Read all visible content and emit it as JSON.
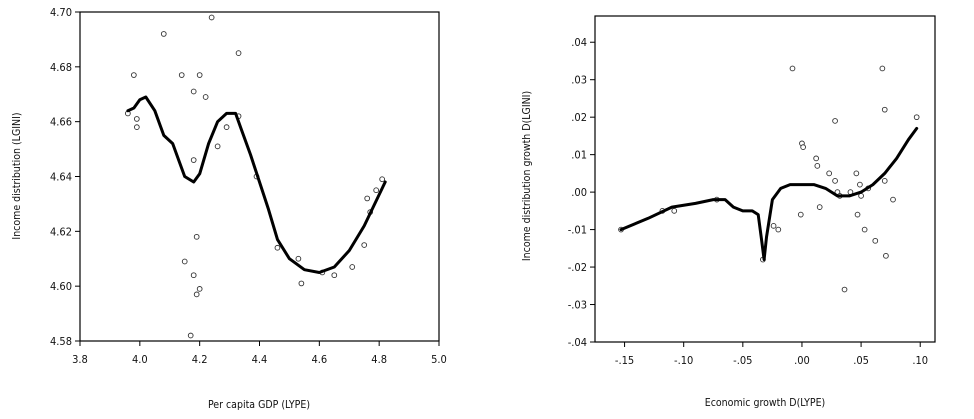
{
  "chart_data": [
    {
      "type": "scatter",
      "xlabel": "Per capita GDP (LYPE)",
      "ylabel": "Income distribution (LGINI)",
      "xlim": [
        3.8,
        5.0
      ],
      "ylim": [
        4.58,
        4.7
      ],
      "x_ticks": [
        "3.8",
        "4.0",
        "4.2",
        "4.4",
        "4.6",
        "4.8",
        "5.0"
      ],
      "y_ticks": [
        "4.58",
        "4.60",
        "4.62",
        "4.64",
        "4.66",
        "4.68",
        "4.70"
      ],
      "series": [
        {
          "kind": "points",
          "marker": "open-circle",
          "x": [
            3.96,
            3.98,
            3.99,
            3.99,
            4.08,
            4.14,
            4.18,
            4.2,
            4.22,
            4.24,
            4.33,
            4.15,
            4.18,
            4.19,
            4.2,
            4.17,
            4.19,
            4.18,
            4.29,
            4.33,
            4.26,
            4.39,
            4.46,
            4.53,
            4.54,
            4.65,
            4.71,
            4.75,
            4.77,
            4.79,
            4.81,
            4.76,
            4.61
          ],
          "y": [
            4.663,
            4.677,
            4.658,
            4.661,
            4.692,
            4.677,
            4.671,
            4.677,
            4.669,
            4.698,
            4.685,
            4.609,
            4.604,
            4.618,
            4.599,
            4.582,
            4.597,
            4.646,
            4.658,
            4.662,
            4.651,
            4.64,
            4.614,
            4.61,
            4.601,
            4.604,
            4.607,
            4.615,
            4.627,
            4.635,
            4.639,
            4.632,
            4.605
          ]
        },
        {
          "kind": "smoothed-line",
          "x": [
            3.96,
            3.98,
            4.0,
            4.02,
            4.05,
            4.08,
            4.11,
            4.13,
            4.15,
            4.18,
            4.2,
            4.23,
            4.26,
            4.29,
            4.32,
            4.34,
            4.37,
            4.4,
            4.43,
            4.46,
            4.5,
            4.55,
            4.6,
            4.65,
            4.7,
            4.75,
            4.82
          ],
          "y": [
            4.664,
            4.665,
            4.668,
            4.669,
            4.664,
            4.655,
            4.652,
            4.646,
            4.64,
            4.638,
            4.641,
            4.652,
            4.66,
            4.663,
            4.663,
            4.657,
            4.648,
            4.638,
            4.628,
            4.617,
            4.61,
            4.606,
            4.605,
            4.607,
            4.613,
            4.622,
            4.638
          ]
        }
      ]
    },
    {
      "type": "scatter",
      "xlabel": "Economic growth D(LYPE)",
      "ylabel": "Income distribution growth D(LGINI)",
      "xlim": [
        -0.175,
        0.1125
      ],
      "ylim": [
        -0.04,
        0.047
      ],
      "x_ticks": [
        "-.15",
        "-.10",
        "-.05",
        ".00",
        ".05",
        ".10"
      ],
      "y_ticks": [
        "-.04",
        "-.03",
        "-.02",
        "-.01",
        ".00",
        ".01",
        ".02",
        ".03",
        ".04"
      ],
      "series": [
        {
          "kind": "points",
          "marker": "open-circle",
          "x": [
            -0.153,
            -0.118,
            -0.108,
            -0.072,
            -0.033,
            -0.024,
            -0.02,
            -0.008,
            -0.001,
            0.0,
            0.001,
            0.012,
            0.013,
            0.015,
            0.023,
            0.028,
            0.028,
            0.03,
            0.032,
            0.036,
            0.041,
            0.046,
            0.047,
            0.049,
            0.05,
            0.053,
            0.056,
            0.062,
            0.068,
            0.07,
            0.07,
            0.071,
            0.077,
            0.097
          ],
          "x_note": "",
          "y": [
            -0.01,
            -0.005,
            -0.005,
            -0.002,
            -0.018,
            -0.009,
            -0.01,
            0.033,
            -0.006,
            0.013,
            0.012,
            0.009,
            0.007,
            -0.004,
            0.005,
            0.019,
            0.003,
            0.0,
            -0.001,
            -0.026,
            0.0,
            0.005,
            -0.006,
            0.002,
            -0.001,
            -0.01,
            0.001,
            -0.013,
            0.033,
            0.022,
            0.003,
            -0.017,
            -0.002,
            0.02
          ]
        },
        {
          "kind": "smoothed-line",
          "x": [
            -0.153,
            -0.13,
            -0.11,
            -0.09,
            -0.075,
            -0.065,
            -0.058,
            -0.05,
            -0.042,
            -0.037,
            -0.034,
            -0.032,
            -0.03,
            -0.025,
            -0.018,
            -0.01,
            0.0,
            0.01,
            0.02,
            0.025,
            0.03,
            0.035,
            0.04,
            0.05,
            0.06,
            0.07,
            0.08,
            0.09,
            0.097
          ],
          "y": [
            -0.01,
            -0.007,
            -0.004,
            -0.003,
            -0.002,
            -0.002,
            -0.004,
            -0.005,
            -0.005,
            -0.006,
            -0.013,
            -0.018,
            -0.012,
            -0.002,
            0.001,
            0.002,
            0.002,
            0.002,
            0.001,
            0.0,
            -0.001,
            -0.001,
            -0.001,
            0.0,
            0.002,
            0.005,
            0.009,
            0.014,
            0.017
          ]
        }
      ]
    }
  ]
}
